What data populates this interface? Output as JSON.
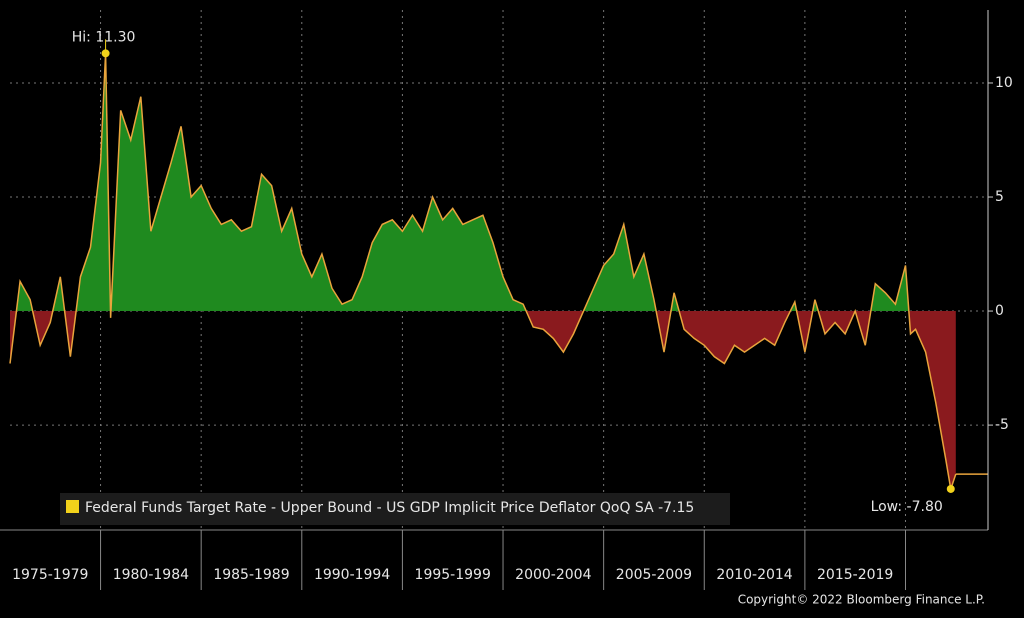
{
  "chart_data": {
    "type": "area",
    "legend": "Federal Funds Target Rate - Upper Bound - US GDP Implicit Price Deflator QoQ SA -7.15",
    "legend_color": "#f2d21b",
    "copyright": "Copyright© 2022 Bloomberg Finance L.P.",
    "positive_color": "#1f8a1f",
    "negative_color": "#8a1a1e",
    "line_color": "#e9a43c",
    "x": [
      1975.5,
      1976,
      1976.5,
      1977,
      1977.5,
      1978,
      1978.5,
      1979,
      1979.5,
      1980,
      1980.25,
      1980.5,
      1981,
      1981.5,
      1982,
      1982.5,
      1983,
      1983.5,
      1984,
      1984.5,
      1985,
      1985.5,
      1986,
      1986.5,
      1987,
      1987.5,
      1988,
      1988.5,
      1989,
      1989.5,
      1990,
      1990.5,
      1991,
      1991.5,
      1992,
      1992.5,
      1993,
      1993.5,
      1994,
      1994.5,
      1995,
      1995.5,
      1996,
      1996.5,
      1997,
      1997.5,
      1998,
      1998.5,
      1999,
      1999.5,
      2000,
      2000.5,
      2001,
      2001.5,
      2002,
      2002.5,
      2003,
      2003.5,
      2004,
      2004.5,
      2005,
      2005.5,
      2006,
      2006.5,
      2007,
      2007.5,
      2008,
      2008.5,
      2009,
      2009.5,
      2010,
      2010.5,
      2011,
      2011.5,
      2012,
      2012.5,
      2013,
      2013.5,
      2014,
      2014.5,
      2015,
      2015.5,
      2016,
      2016.5,
      2017,
      2017.5,
      2018,
      2018.5,
      2019,
      2019.5,
      2020,
      2020.25,
      2020.5,
      2021,
      2021.5,
      2022,
      2022.25,
      2022.5
    ],
    "values": [
      -2.3,
      1.3,
      0.5,
      -1.5,
      -0.5,
      1.5,
      -2.0,
      1.5,
      2.8,
      6.5,
      11.3,
      -0.3,
      8.8,
      7.5,
      9.4,
      3.5,
      5.0,
      6.5,
      8.1,
      5.0,
      5.5,
      4.5,
      3.8,
      4.0,
      3.5,
      3.7,
      6.0,
      5.5,
      3.5,
      4.5,
      2.5,
      1.5,
      2.5,
      1.0,
      0.3,
      0.5,
      1.5,
      3.0,
      3.8,
      4.0,
      3.5,
      4.2,
      3.5,
      5.0,
      4.0,
      4.5,
      3.8,
      4.0,
      4.2,
      3.0,
      1.5,
      0.5,
      0.3,
      -0.7,
      -0.8,
      -1.2,
      -1.8,
      -1.0,
      0.0,
      1.0,
      2.0,
      2.5,
      3.8,
      1.5,
      2.5,
      0.5,
      -1.8,
      0.8,
      -0.8,
      -1.2,
      -1.5,
      -2.0,
      -2.3,
      -1.5,
      -1.8,
      -1.5,
      -1.2,
      -1.5,
      -0.5,
      0.4,
      -1.8,
      0.5,
      -1.0,
      -0.5,
      -1.0,
      0.0,
      -1.5,
      1.2,
      0.8,
      0.3,
      2.0,
      -1.0,
      -0.8,
      -1.8,
      -4.0,
      -6.5,
      -7.8,
      -7.15
    ],
    "xlim": [
      1975.5,
      2024.1
    ],
    "xticks": [
      1980,
      1985,
      1990,
      1995,
      2000,
      2005,
      2010,
      2015,
      2020
    ],
    "periods": [
      {
        "label": "1975-1979",
        "range": [
          1975,
          1980
        ]
      },
      {
        "label": "1980-1984",
        "range": [
          1980,
          1985
        ]
      },
      {
        "label": "1985-1989",
        "range": [
          1985,
          1990
        ]
      },
      {
        "label": "1990-1994",
        "range": [
          1990,
          1995
        ]
      },
      {
        "label": "1995-1999",
        "range": [
          1995,
          2000
        ]
      },
      {
        "label": "2000-2004",
        "range": [
          2000,
          2005
        ]
      },
      {
        "label": "2005-2009",
        "range": [
          2005,
          2010
        ]
      },
      {
        "label": "2010-2014",
        "range": [
          2010,
          2015
        ]
      },
      {
        "label": "2015-2019",
        "range": [
          2015,
          2020
        ]
      }
    ],
    "ylim": [
      -9.6,
      13.2
    ],
    "yticks": [
      -5,
      0,
      5,
      10
    ],
    "grid": true,
    "annotations": [
      {
        "text": "Hi: 11.30",
        "x": 1980.25,
        "y": 11.3
      },
      {
        "text": "Low: -7.80",
        "x": 2022.25,
        "y": -7.8
      }
    ]
  }
}
